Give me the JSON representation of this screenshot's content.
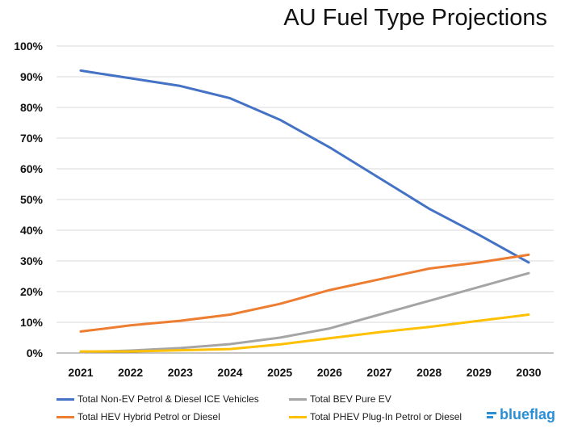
{
  "chart_data": {
    "type": "line",
    "title": "AU Fuel Type Projections",
    "xlabel": "",
    "ylabel": "",
    "x": [
      "2021",
      "2022",
      "2023",
      "2024",
      "2025",
      "2026",
      "2027",
      "2028",
      "2029",
      "2030"
    ],
    "yticks": [
      "0%",
      "10%",
      "20%",
      "30%",
      "40%",
      "50%",
      "60%",
      "70%",
      "80%",
      "90%",
      "100%"
    ],
    "ylim": [
      0,
      100
    ],
    "grid": true,
    "legend_position": "bottom",
    "series": [
      {
        "name": "Total Non-EV Petrol & Diesel ICE Vehicles",
        "color": "#4472c4",
        "values": [
          92,
          89.5,
          87,
          83,
          76,
          67,
          57,
          47,
          38.5,
          29.5
        ]
      },
      {
        "name": "Total BEV Pure EV",
        "color": "#a5a5a5",
        "values": [
          0.3,
          0.8,
          1.6,
          2.9,
          5,
          8,
          12.5,
          17,
          21.5,
          26
        ]
      },
      {
        "name": "Total HEV Hybrid Petrol or Diesel",
        "color": "#ed7d31",
        "values": [
          7,
          9,
          10.5,
          12.5,
          16,
          20.5,
          24,
          27.5,
          29.5,
          32
        ]
      },
      {
        "name": "Total PHEV Plug-In Petrol or Diesel",
        "color": "#ffc000",
        "values": [
          0.5,
          0.5,
          0.9,
          1.3,
          2.8,
          4.8,
          6.8,
          8.5,
          10.5,
          12.5
        ]
      }
    ]
  },
  "brand": {
    "name": "blueflag"
  }
}
